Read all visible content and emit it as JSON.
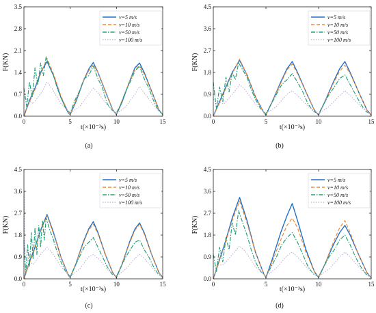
{
  "legend_labels": [
    "v=5 m/s",
    "v=10 m/s",
    "v=50 m/s",
    "v=100 m/s"
  ],
  "series_colors": [
    "#1f6fc9",
    "#f08a32",
    "#25a07a",
    "#b9a8d8"
  ],
  "chart_data": [
    {
      "type": "line",
      "panel_label": "(a)",
      "xlabel": "t(×10⁻³s)",
      "ylabel": "F(KN)",
      "xlim": [
        0,
        15
      ],
      "ylim": [
        0,
        3.5
      ],
      "xticks": [
        "0",
        "5",
        "10",
        "15"
      ],
      "yticks": [
        "0.0",
        "0.7",
        "1.4",
        "2.1",
        "2.8",
        "3.5"
      ],
      "legend_position": "top-right",
      "series": [
        {
          "name": "v=5 m/s",
          "x": [
            0,
            0.6,
            1.2,
            1.8,
            2.5,
            3.2,
            4.0,
            4.8,
            5.0,
            5.6,
            6.4,
            7.0,
            7.5,
            8.0,
            8.8,
            9.6,
            10.0,
            10.6,
            11.4,
            12.0,
            12.5,
            13.0,
            13.8,
            14.6,
            15.0
          ],
          "y": [
            0,
            0.5,
            0.9,
            1.4,
            1.75,
            1.3,
            0.6,
            0.1,
            0.05,
            0.45,
            1.1,
            1.5,
            1.72,
            1.4,
            0.8,
            0.2,
            0.05,
            0.45,
            1.1,
            1.55,
            1.7,
            1.4,
            0.8,
            0.2,
            0.05
          ]
        },
        {
          "name": "v=10 m/s",
          "x": [
            0,
            0.6,
            1.2,
            1.8,
            2.5,
            3.2,
            4.0,
            4.8,
            5.0,
            5.6,
            6.4,
            7.0,
            7.5,
            8.0,
            8.8,
            9.6,
            10.0,
            10.6,
            11.4,
            12.0,
            12.5,
            13.0,
            13.8,
            14.6,
            15.0
          ],
          "y": [
            0,
            0.45,
            0.85,
            1.35,
            1.85,
            1.35,
            0.65,
            0.12,
            0.05,
            0.5,
            1.1,
            1.45,
            1.65,
            1.4,
            0.8,
            0.2,
            0.05,
            0.5,
            1.1,
            1.5,
            1.62,
            1.35,
            0.8,
            0.2,
            0.05
          ]
        },
        {
          "name": "v=50 m/s",
          "x": [
            0,
            0.3,
            0.6,
            0.9,
            1.2,
            1.5,
            1.8,
            2.1,
            2.4,
            2.8,
            3.2,
            3.6,
            4.0,
            4.5,
            5.0,
            5.5,
            6.0,
            6.5,
            7.0,
            7.5,
            8.0,
            8.5,
            9.0,
            9.5,
            10.0,
            10.5,
            11.0,
            11.5,
            12.0,
            12.5,
            13.0,
            13.5,
            14.0,
            14.5,
            15.0
          ],
          "y": [
            0.9,
            0.3,
            1.1,
            0.6,
            1.55,
            1.0,
            1.7,
            1.3,
            1.9,
            1.55,
            1.3,
            0.9,
            0.6,
            0.25,
            0.1,
            0.5,
            0.8,
            1.2,
            1.3,
            1.6,
            1.2,
            0.9,
            0.4,
            0.2,
            0.1,
            0.4,
            0.8,
            1.1,
            1.45,
            1.6,
            1.2,
            0.9,
            0.5,
            0.2,
            0.05
          ]
        },
        {
          "name": "v=100 m/s",
          "x": [
            0,
            1.0,
            2.0,
            2.5,
            3.0,
            4.0,
            5.0,
            6.0,
            7.0,
            7.5,
            8.0,
            9.0,
            10.0,
            11.0,
            12.0,
            12.5,
            13.0,
            14.0,
            15.0
          ],
          "y": [
            0.6,
            0.4,
            0.8,
            1.1,
            0.9,
            0.4,
            0.1,
            0.3,
            0.7,
            0.9,
            0.75,
            0.35,
            0.08,
            0.3,
            0.7,
            0.95,
            0.75,
            0.35,
            0.05
          ]
        }
      ]
    },
    {
      "type": "line",
      "panel_label": "(b)",
      "xlabel": "t(×10⁻³s)",
      "ylabel": "F(KN)",
      "xlim": [
        0,
        15
      ],
      "ylim": [
        0,
        4.5
      ],
      "xticks": [
        "0",
        "5",
        "10",
        "15"
      ],
      "yticks": [
        "0.0",
        "0.9",
        "1.8",
        "2.7",
        "3.6",
        "4.5"
      ],
      "legend_position": "top-right",
      "series": [
        {
          "name": "v=5 m/s",
          "x": [
            0,
            0.6,
            1.2,
            1.8,
            2.5,
            3.2,
            4.0,
            4.8,
            5.0,
            5.6,
            6.4,
            7.0,
            7.5,
            8.0,
            8.8,
            9.6,
            10.0,
            10.6,
            11.4,
            12.0,
            12.5,
            13.0,
            13.8,
            14.6,
            15.0
          ],
          "y": [
            0,
            0.6,
            1.2,
            1.8,
            2.3,
            1.7,
            0.8,
            0.15,
            0.05,
            0.6,
            1.4,
            1.95,
            2.25,
            1.8,
            1.0,
            0.25,
            0.05,
            0.6,
            1.4,
            1.95,
            2.25,
            1.8,
            1.0,
            0.25,
            0.05
          ]
        },
        {
          "name": "v=10 m/s",
          "x": [
            0,
            0.6,
            1.2,
            1.8,
            2.5,
            3.2,
            4.0,
            4.8,
            5.0,
            5.6,
            6.4,
            7.0,
            7.5,
            8.0,
            8.8,
            9.6,
            10.0,
            10.6,
            11.4,
            12.0,
            12.5,
            13.0,
            13.8,
            14.6,
            15.0
          ],
          "y": [
            0,
            0.55,
            1.15,
            1.75,
            2.35,
            1.7,
            0.8,
            0.15,
            0.05,
            0.6,
            1.35,
            1.9,
            2.15,
            1.75,
            1.0,
            0.25,
            0.05,
            0.6,
            1.35,
            1.85,
            2.1,
            1.75,
            1.0,
            0.25,
            0.05
          ]
        },
        {
          "name": "v=50 m/s",
          "x": [
            0,
            0.3,
            0.6,
            0.9,
            1.2,
            1.5,
            1.8,
            2.1,
            2.4,
            2.8,
            3.2,
            3.6,
            4.0,
            4.5,
            5.0,
            5.5,
            6.0,
            6.5,
            7.0,
            7.5,
            8.0,
            8.5,
            9.0,
            9.5,
            10.0,
            10.5,
            11.0,
            11.5,
            12.0,
            12.5,
            13.0,
            13.5,
            14.0,
            14.5,
            15.0
          ],
          "y": [
            1.4,
            0.3,
            1.2,
            0.6,
            1.6,
            1.0,
            1.8,
            1.5,
            2.2,
            1.9,
            1.6,
            1.1,
            0.7,
            0.3,
            0.1,
            0.5,
            0.9,
            1.3,
            1.5,
            1.75,
            1.4,
            1.0,
            0.5,
            0.2,
            0.1,
            0.5,
            0.9,
            1.2,
            1.55,
            1.7,
            1.3,
            0.9,
            0.5,
            0.2,
            0.05
          ]
        },
        {
          "name": "v=100 m/s",
          "x": [
            0,
            1.0,
            2.0,
            2.5,
            3.0,
            4.0,
            5.0,
            6.0,
            7.0,
            7.5,
            8.0,
            9.0,
            10.0,
            11.0,
            12.0,
            12.5,
            13.0,
            14.0,
            15.0
          ],
          "y": [
            0.7,
            0.5,
            1.0,
            1.3,
            1.1,
            0.5,
            0.1,
            0.4,
            0.9,
            1.05,
            0.85,
            0.4,
            0.1,
            0.4,
            0.85,
            1.05,
            0.85,
            0.4,
            0.05
          ]
        }
      ]
    },
    {
      "type": "line",
      "panel_label": "(c)",
      "xlabel": "t(×10⁻³s)",
      "ylabel": "F(KN)",
      "xlim": [
        0,
        15
      ],
      "ylim": [
        0,
        4.5
      ],
      "xticks": [
        "0",
        "5",
        "10",
        "15"
      ],
      "yticks": [
        "0.0",
        "0.9",
        "1.8",
        "2.7",
        "3.6",
        "4.5"
      ],
      "legend_position": "top-right",
      "series": [
        {
          "name": "v=5 m/s",
          "x": [
            0,
            0.6,
            1.2,
            1.8,
            2.5,
            3.2,
            4.0,
            4.8,
            5.0,
            5.6,
            6.4,
            7.0,
            7.5,
            8.0,
            8.8,
            9.6,
            10.0,
            10.6,
            11.4,
            12.0,
            12.5,
            13.0,
            13.8,
            14.6,
            15.0
          ],
          "y": [
            0,
            0.7,
            1.3,
            2.0,
            2.65,
            1.9,
            0.9,
            0.15,
            0.05,
            0.6,
            1.5,
            2.05,
            2.35,
            1.9,
            1.0,
            0.25,
            0.05,
            0.6,
            1.5,
            2.05,
            2.3,
            1.9,
            1.0,
            0.25,
            0.05
          ]
        },
        {
          "name": "v=10 m/s",
          "x": [
            0,
            0.6,
            1.2,
            1.8,
            2.5,
            3.2,
            4.0,
            4.8,
            5.0,
            5.6,
            6.4,
            7.0,
            7.5,
            8.0,
            8.8,
            9.6,
            10.0,
            10.6,
            11.4,
            12.0,
            12.5,
            13.0,
            13.8,
            14.6,
            15.0
          ],
          "y": [
            0,
            0.65,
            1.25,
            1.95,
            2.6,
            1.85,
            0.9,
            0.15,
            0.05,
            0.6,
            1.45,
            2.0,
            2.25,
            1.85,
            1.0,
            0.25,
            0.05,
            0.6,
            1.45,
            2.0,
            2.25,
            1.85,
            1.0,
            0.25,
            0.05
          ]
        },
        {
          "name": "v=50 m/s",
          "x": [
            0,
            0.2,
            0.4,
            0.6,
            0.8,
            1.0,
            1.2,
            1.4,
            1.6,
            1.8,
            2.0,
            2.2,
            2.4,
            2.8,
            3.2,
            3.6,
            4.0,
            4.5,
            5.0,
            5.5,
            6.0,
            6.5,
            7.0,
            7.5,
            8.0,
            8.5,
            9.0,
            9.5,
            10.0,
            10.5,
            11.0,
            11.5,
            12.0,
            12.5,
            13.0,
            13.5,
            14.0,
            14.5,
            15.0
          ],
          "y": [
            1.6,
            0.2,
            1.4,
            0.5,
            1.9,
            0.8,
            2.1,
            1.0,
            2.2,
            1.3,
            2.4,
            1.6,
            2.5,
            2.0,
            1.6,
            1.1,
            0.7,
            0.3,
            0.1,
            0.5,
            0.9,
            1.3,
            1.5,
            1.7,
            1.3,
            0.9,
            0.5,
            0.2,
            0.1,
            0.5,
            0.9,
            1.2,
            1.5,
            1.6,
            1.2,
            0.9,
            0.5,
            0.2,
            0.05
          ]
        },
        {
          "name": "v=100 m/s",
          "x": [
            0,
            0.05,
            0.1,
            1.0,
            2.0,
            2.5,
            3.0,
            4.0,
            5.0,
            6.0,
            7.0,
            7.5,
            8.0,
            9.0,
            10.0,
            11.0,
            12.0,
            12.5,
            13.0,
            14.0,
            15.0
          ],
          "y": [
            0,
            3.6,
            0.8,
            0.6,
            1.1,
            1.3,
            1.1,
            0.5,
            0.1,
            0.4,
            0.9,
            1.0,
            0.85,
            0.4,
            0.1,
            0.4,
            0.85,
            1.0,
            0.85,
            0.4,
            0.05
          ]
        }
      ]
    },
    {
      "type": "line",
      "panel_label": "(d)",
      "xlabel": "t(×10⁻³s)",
      "ylabel": "F(KN)",
      "xlim": [
        0,
        15
      ],
      "ylim": [
        0,
        4.5
      ],
      "xticks": [
        "0",
        "5",
        "10",
        "15"
      ],
      "yticks": [
        "0.0",
        "0.9",
        "1.8",
        "2.7",
        "3.6",
        "4.5"
      ],
      "legend_position": "top-right",
      "series": [
        {
          "name": "v=5 m/s",
          "x": [
            0,
            0.6,
            1.2,
            1.8,
            2.5,
            3.2,
            4.0,
            4.8,
            5.0,
            5.6,
            6.4,
            7.0,
            7.5,
            8.0,
            8.8,
            9.6,
            10.0,
            10.6,
            11.4,
            12.0,
            12.5,
            13.0,
            13.8,
            14.6,
            15.0
          ],
          "y": [
            0,
            0.8,
            1.6,
            2.5,
            3.35,
            2.4,
            1.1,
            0.2,
            0.05,
            0.8,
            1.9,
            2.6,
            3.1,
            2.4,
            1.2,
            0.3,
            0.05,
            0.6,
            1.4,
            1.9,
            2.2,
            1.8,
            1.0,
            0.25,
            0.05
          ]
        },
        {
          "name": "v=10 m/s",
          "x": [
            0,
            0.6,
            1.2,
            1.8,
            2.5,
            3.2,
            4.0,
            4.8,
            5.0,
            5.6,
            6.4,
            7.0,
            7.5,
            8.0,
            8.8,
            9.6,
            10.0,
            10.6,
            11.4,
            12.0,
            12.5,
            13.0,
            13.8,
            14.6,
            15.0
          ],
          "y": [
            0,
            0.75,
            1.55,
            2.4,
            3.2,
            2.3,
            1.1,
            0.2,
            0.05,
            0.7,
            1.6,
            2.2,
            2.5,
            2.1,
            1.1,
            0.3,
            0.05,
            0.6,
            1.5,
            2.1,
            2.4,
            1.9,
            1.0,
            0.25,
            0.05
          ]
        },
        {
          "name": "v=50 m/s",
          "x": [
            0,
            0.3,
            0.6,
            0.9,
            1.2,
            1.5,
            1.8,
            2.1,
            2.4,
            2.8,
            3.2,
            3.6,
            4.0,
            4.5,
            5.0,
            5.5,
            6.0,
            6.5,
            7.0,
            7.5,
            8.0,
            8.5,
            9.0,
            9.5,
            10.0,
            10.5,
            11.0,
            11.5,
            12.0,
            12.5,
            13.0,
            13.5,
            14.0,
            14.5,
            15.0
          ],
          "y": [
            1.0,
            0.3,
            1.3,
            0.7,
            1.7,
            1.2,
            2.3,
            1.8,
            2.8,
            2.3,
            1.8,
            1.2,
            0.7,
            0.3,
            0.1,
            0.5,
            0.9,
            1.4,
            1.7,
            1.9,
            1.5,
            1.0,
            0.5,
            0.2,
            0.1,
            0.5,
            0.9,
            1.2,
            1.6,
            1.8,
            1.4,
            0.9,
            0.5,
            0.2,
            0.05
          ]
        },
        {
          "name": "v=100 m/s",
          "x": [
            0,
            1.0,
            2.0,
            2.5,
            3.0,
            4.0,
            5.0,
            6.0,
            7.0,
            7.5,
            8.0,
            9.0,
            10.0,
            11.0,
            12.0,
            12.5,
            13.0,
            14.0,
            15.0
          ],
          "y": [
            0.5,
            0.6,
            1.1,
            1.35,
            1.15,
            0.5,
            0.1,
            0.45,
            0.95,
            1.1,
            0.9,
            0.4,
            0.1,
            0.4,
            0.9,
            1.1,
            0.9,
            0.4,
            0.05
          ]
        }
      ]
    }
  ]
}
